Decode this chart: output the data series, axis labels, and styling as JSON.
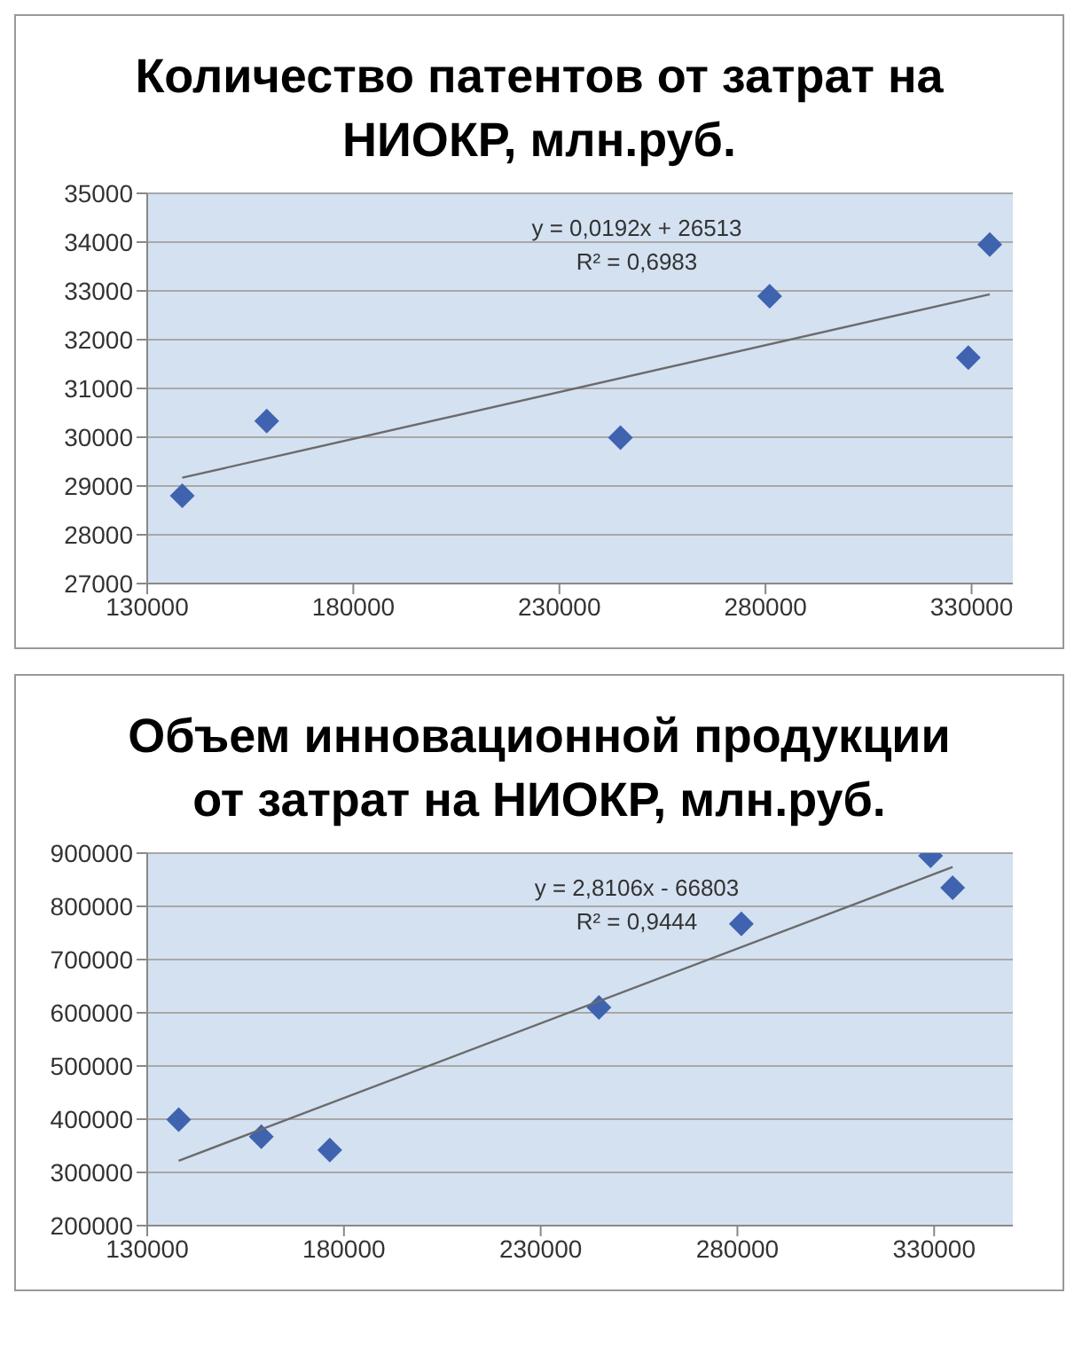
{
  "chart_data": [
    {
      "type": "scatter",
      "title": "Количество патентов от затрат на НИОКР, млн.руб.",
      "xlim": [
        130000,
        340000
      ],
      "xticks": [
        130000,
        180000,
        230000,
        280000,
        330000
      ],
      "ylim": [
        27000,
        35000
      ],
      "yticks": [
        27000,
        28000,
        29000,
        30000,
        31000,
        32000,
        33000,
        34000,
        35000
      ],
      "grid": "y",
      "annotations": [
        "y = 0,0192x + 26513",
        "R² = 0,6983"
      ],
      "series": [
        {
          "color": "#4063b0",
          "marker": "diamond",
          "x": [
            138500,
            159000,
            244800,
            281000,
            329200,
            334400
          ],
          "values": [
            28800,
            30330,
            29990,
            32890,
            31630,
            33950
          ]
        },
        {
          "type": "line",
          "marker": "none",
          "color": "#6b6b6b",
          "x": [
            138500,
            334400
          ],
          "values": [
            29170,
            32930
          ]
        }
      ]
    },
    {
      "type": "scatter",
      "title": "Объем инновационной продукции от затрат на НИОКР, млн.руб.",
      "xlim": [
        130000,
        350000
      ],
      "xticks": [
        130000,
        180000,
        230000,
        280000,
        330000
      ],
      "ylim": [
        200000,
        900000
      ],
      "yticks": [
        200000,
        300000,
        400000,
        500000,
        600000,
        700000,
        800000,
        900000
      ],
      "grid": "y",
      "annotations": [
        "y = 2,8106x - 66803",
        "R² = 0,9444"
      ],
      "series": [
        {
          "color": "#4063b0",
          "marker": "diamond",
          "x": [
            138000,
            159000,
            176400,
            244800,
            281000,
            329100,
            334700
          ],
          "values": [
            399000,
            367000,
            342000,
            610000,
            767000,
            895000,
            835000
          ]
        },
        {
          "type": "line",
          "marker": "none",
          "color": "#6b6b6b",
          "x": [
            138000,
            334700
          ],
          "values": [
            322000,
            874000
          ]
        }
      ]
    }
  ]
}
